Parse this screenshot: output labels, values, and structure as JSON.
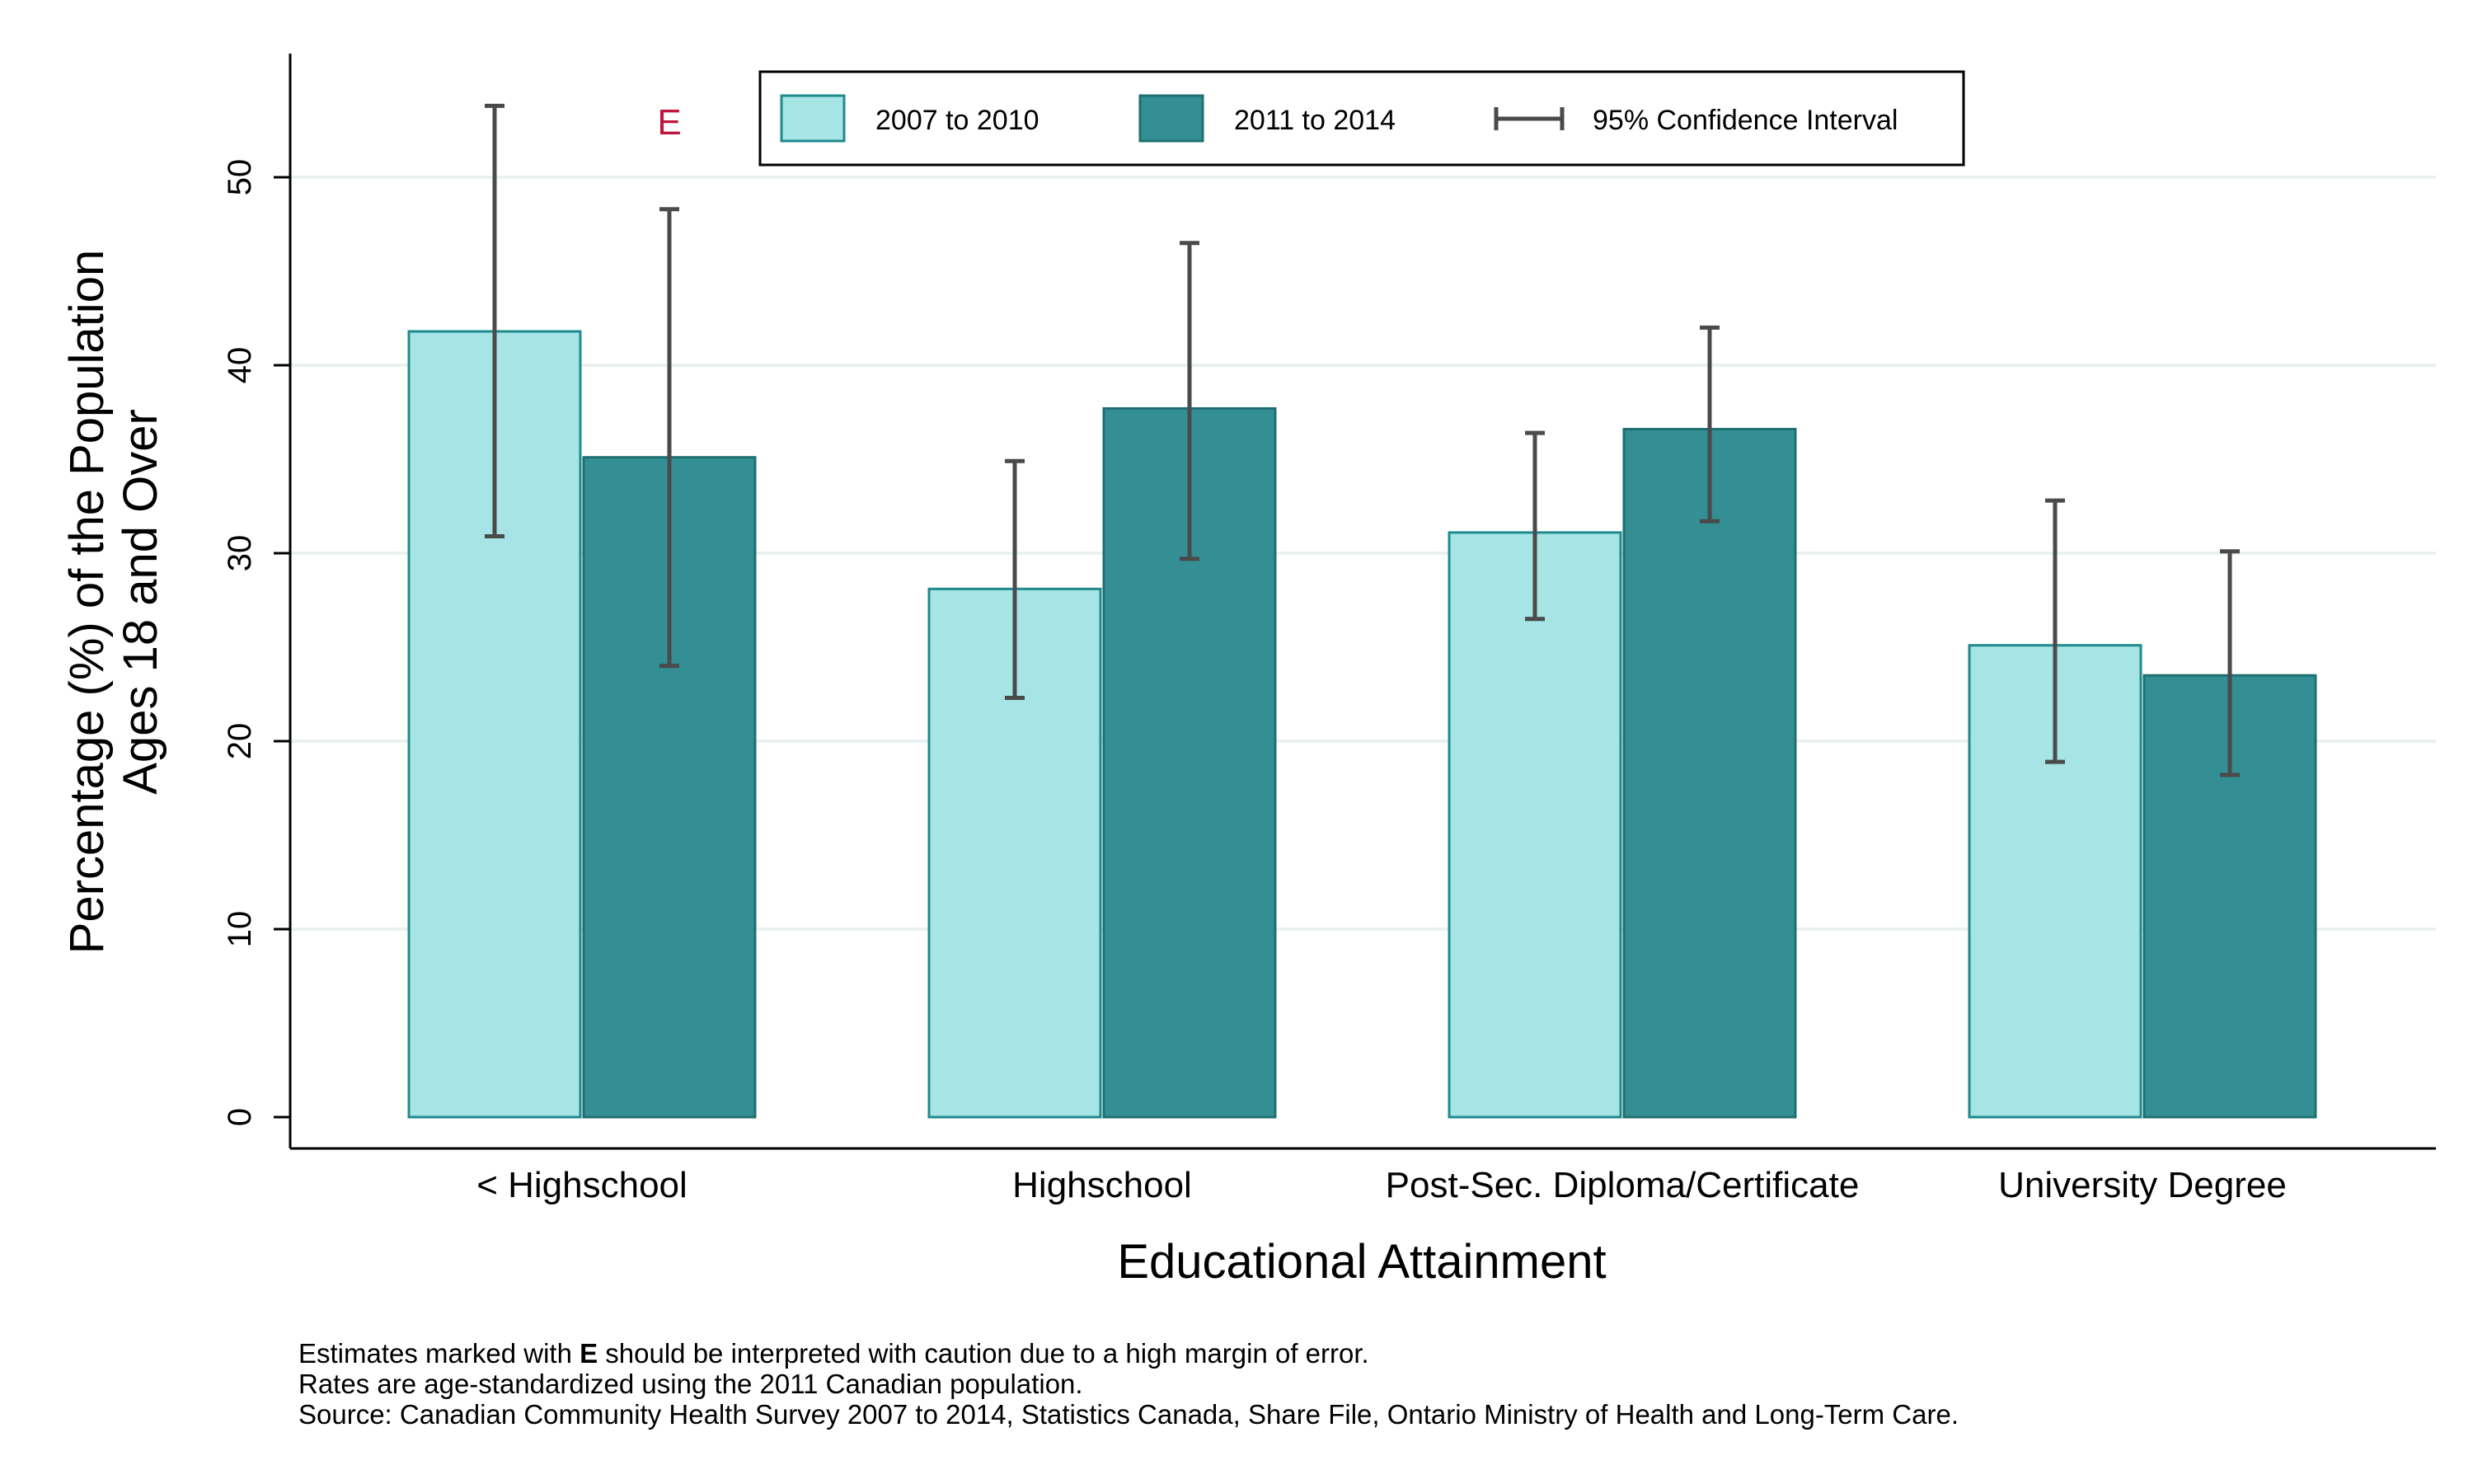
{
  "chart_data": {
    "type": "bar",
    "xlabel": "Educational Attainment",
    "ylabel_lines": [
      "Percentage (%) of the Population",
      "Ages 18 and Over"
    ],
    "ylim": [
      0,
      57
    ],
    "yticks": [
      0,
      10,
      20,
      30,
      40,
      50
    ],
    "grid": true,
    "legend_position": "top-center",
    "categories": [
      "< Highschool",
      "Highschool",
      "Post-Sec. Diploma/Certificate",
      "University Degree"
    ],
    "series": [
      {
        "name": "2007 to 2010",
        "color": "#a7e4e6",
        "edge": "#1f8a8c",
        "values": [
          41.8,
          28.1,
          31.1,
          25.1
        ],
        "ci_low": [
          30.9,
          22.3,
          26.5,
          18.9
        ],
        "ci_high": [
          53.8,
          34.9,
          36.4,
          32.8
        ],
        "flags": [
          "",
          "",
          "",
          ""
        ]
      },
      {
        "name": "2011 to 2014",
        "color": "#338f93",
        "edge": "#1f6f72",
        "values": [
          35.1,
          37.7,
          36.6,
          23.5
        ],
        "ci_low": [
          24.0,
          29.7,
          31.7,
          18.2
        ],
        "ci_high": [
          48.3,
          46.5,
          42.0,
          30.1
        ],
        "flags": [
          "E",
          "",
          "",
          ""
        ]
      }
    ],
    "ci_legend_label": "95% Confidence Interval",
    "flag_color": "#c0143c"
  },
  "footnotes": {
    "line1_pre": "Estimates marked with ",
    "line1_bold": "E",
    "line1_post": " should be interpreted with caution due to a high margin of error.",
    "line2": "Rates are age-standardized using the 2011 Canadian population.",
    "line3": "Source: Canadian Community Health Survey 2007 to 2014, Statistics Canada, Share File, Ontario Ministry of Health and Long-Term Care."
  }
}
